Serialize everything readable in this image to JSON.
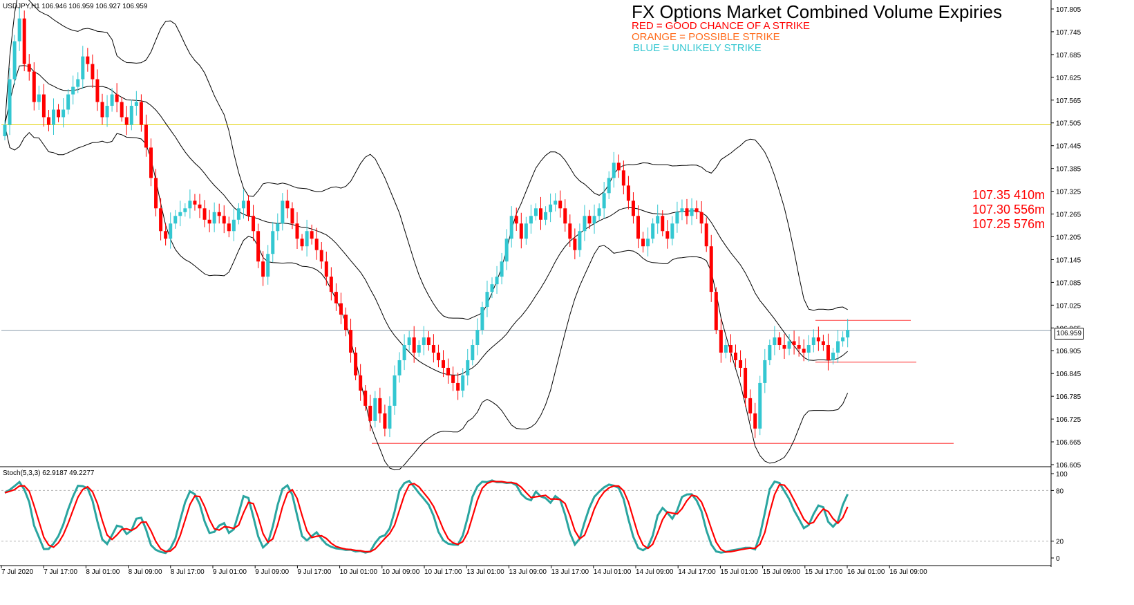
{
  "symbol_info": "USDJPY,H1  106.946 106.959 106.927 106.959",
  "stoch_info": "Stoch(5,3,3) 62.9187 49.2277",
  "title": "FX Options Market Combined Volume Expiries",
  "legend": {
    "red": "RED = GOOD CHANCE OF A STRIKE",
    "orange": "ORANGE = POSSIBLE STRIKE",
    "blue": "BLUE = UNLIKELY STRIKE"
  },
  "expiries": [
    "107.35 410m",
    "107.30 556m",
    "107.25 576m"
  ],
  "current_price_label": "106.959",
  "colors": {
    "bull": "#33c7d1",
    "bear": "#ff0000",
    "bands": "#000000",
    "level_line": "#e0d000",
    "current_line": "#8899aa",
    "support": "#ff5a5a",
    "stoch_main": "#2aa5a0",
    "stoch_signal": "#ff0000"
  },
  "chart_data": {
    "type": "candlestick",
    "symbol": "USDJPY",
    "timeframe": "H1",
    "y_ticks": [
      "107.805",
      "107.745",
      "107.685",
      "107.625",
      "107.565",
      "107.505",
      "107.445",
      "107.385",
      "107.325",
      "107.265",
      "107.205",
      "107.145",
      "107.085",
      "107.025",
      "106.965",
      "106.905",
      "106.845",
      "106.785",
      "106.725",
      "106.665",
      "106.605"
    ],
    "ylim": [
      106.605,
      107.825
    ],
    "x_ticks": [
      "7 Jul 2020",
      "7 Jul 17:00",
      "8 Jul 01:00",
      "8 Jul 09:00",
      "8 Jul 17:00",
      "9 Jul 01:00",
      "9 Jul 09:00",
      "9 Jul 17:00",
      "10 Jul 01:00",
      "10 Jul 09:00",
      "10 Jul 17:00",
      "13 Jul 01:00",
      "13 Jul 09:00",
      "13 Jul 17:00",
      "14 Jul 01:00",
      "14 Jul 09:00",
      "14 Jul 17:00",
      "15 Jul 01:00",
      "15 Jul 09:00",
      "15 Jul 17:00",
      "16 Jul 01:00",
      "16 Jul 09:00"
    ],
    "closes": [
      107.5,
      107.62,
      107.72,
      107.78,
      107.66,
      107.64,
      107.56,
      107.58,
      107.52,
      107.5,
      107.54,
      107.52,
      107.54,
      107.58,
      107.6,
      107.62,
      107.68,
      107.66,
      107.62,
      107.56,
      107.52,
      107.55,
      107.58,
      107.56,
      107.52,
      107.5,
      107.55,
      107.56,
      107.5,
      107.44,
      107.36,
      107.28,
      107.22,
      107.2,
      107.24,
      107.26,
      107.27,
      107.28,
      107.3,
      107.29,
      107.28,
      107.25,
      107.24,
      107.27,
      107.26,
      107.24,
      107.22,
      107.25,
      107.28,
      107.3,
      107.26,
      107.22,
      107.14,
      107.1,
      107.16,
      107.22,
      107.24,
      107.3,
      107.28,
      107.24,
      107.2,
      107.18,
      107.22,
      107.2,
      107.17,
      107.14,
      107.1,
      107.06,
      107.03,
      107.0,
      106.96,
      106.9,
      106.84,
      106.8,
      106.76,
      106.72,
      106.78,
      106.74,
      106.7,
      106.76,
      106.84,
      106.88,
      106.92,
      106.94,
      106.9,
      106.92,
      106.94,
      106.92,
      106.9,
      106.88,
      106.86,
      106.84,
      106.82,
      106.8,
      106.84,
      106.88,
      106.92,
      106.96,
      107.02,
      107.06,
      107.08,
      107.1,
      107.14,
      107.2,
      107.26,
      107.24,
      107.2,
      107.24,
      107.26,
      107.28,
      107.25,
      107.27,
      107.29,
      107.3,
      107.28,
      107.24,
      107.2,
      107.17,
      107.22,
      107.26,
      107.24,
      107.26,
      107.28,
      107.32,
      107.36,
      107.4,
      107.38,
      107.34,
      107.3,
      107.26,
      107.2,
      107.18,
      107.2,
      107.24,
      107.26,
      107.22,
      107.2,
      107.24,
      107.27,
      107.28,
      107.26,
      107.28,
      107.27,
      107.24,
      107.18,
      107.06,
      106.96,
      106.9,
      106.92,
      106.9,
      106.88,
      106.86,
      106.78,
      106.74,
      106.7,
      106.82,
      106.88,
      106.92,
      106.94,
      106.92,
      106.91,
      106.93,
      106.92,
      106.91,
      106.9,
      106.92,
      106.94,
      106.93,
      106.92,
      106.88,
      106.9,
      106.93,
      106.94,
      106.96
    ],
    "bands": {
      "period": 20,
      "deviations": 2
    },
    "horizontal_levels": [
      107.5,
      106.959
    ],
    "support_line": 106.661,
    "range_box": [
      106.875,
      106.985
    ],
    "stochastic": {
      "params": "5,3,3",
      "main": 62.9187,
      "signal": 49.2277,
      "ylim": [
        0,
        100
      ],
      "levels": [
        20,
        80
      ],
      "y_ticks": [
        "100",
        "80",
        "20",
        "0"
      ]
    }
  }
}
